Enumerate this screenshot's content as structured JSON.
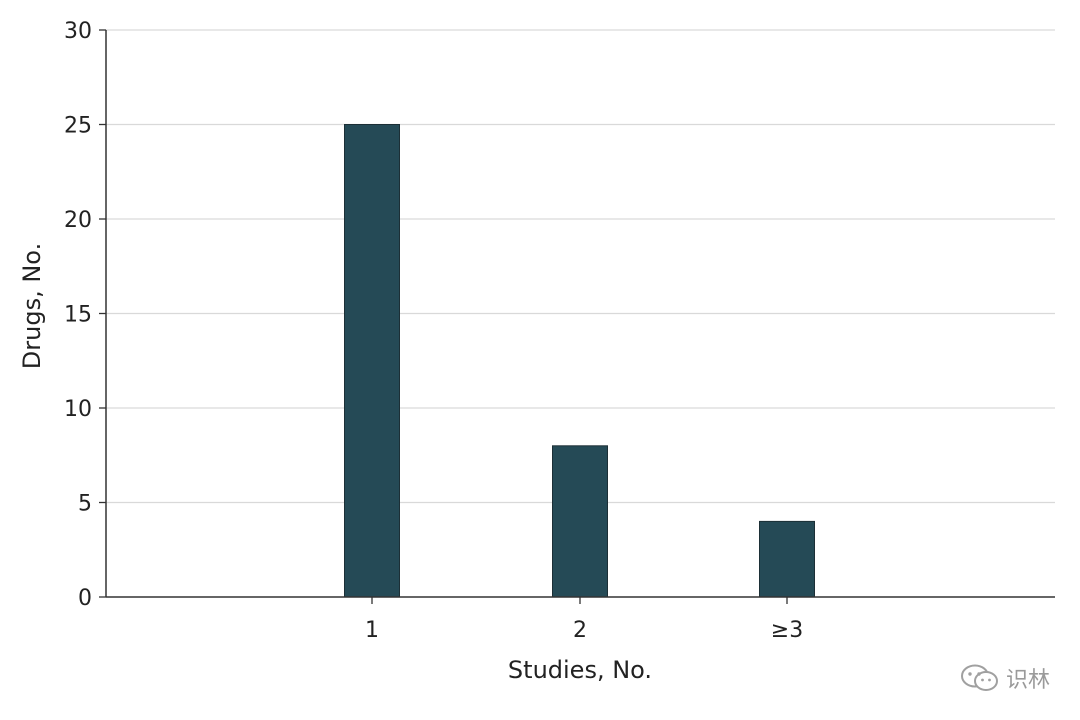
{
  "chart_data": {
    "type": "bar",
    "categories": [
      "1",
      "2",
      "≥3"
    ],
    "values": [
      25,
      8,
      4
    ],
    "xlabel": "Studies, No.",
    "ylabel": "Drugs, No.",
    "ylim": [
      0,
      30
    ],
    "yticks": [
      "0",
      "5",
      "10",
      "15",
      "20",
      "25",
      "30"
    ],
    "grid": true,
    "bar_color": "#254a56"
  },
  "watermark": {
    "text": "识林",
    "icon": "wechat-icon"
  }
}
